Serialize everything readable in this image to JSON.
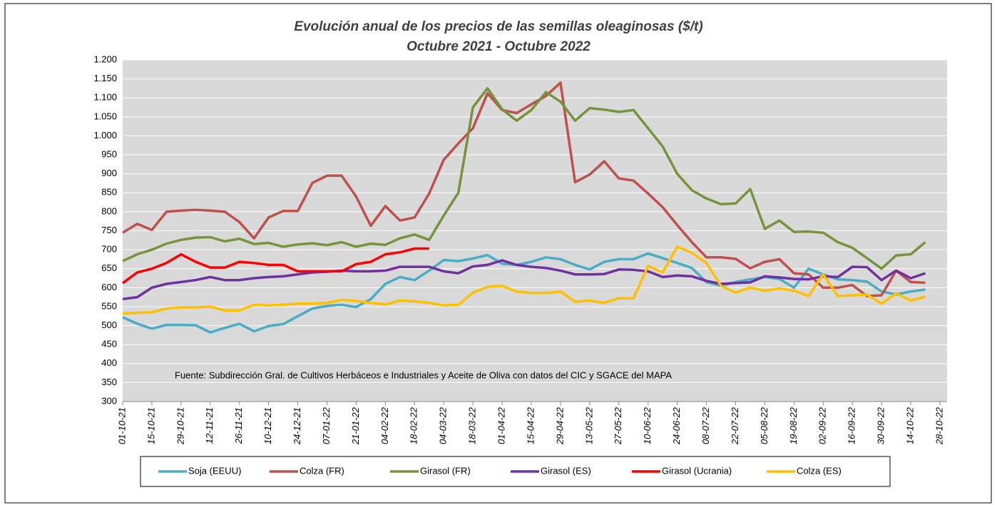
{
  "chart_data": {
    "type": "line",
    "title": "Evolución anual de los precios de las semillas oleaginosas ($/t)",
    "subtitle": "Octubre 2021 - Octubre 2022",
    "annotation": "Fuente: Subdirección Gral. de Cultivos Herbáceos e Industriales y Aceite de Oliva con datos del CIC y SGACE del MAPA",
    "categories": [
      "01-10-21",
      null,
      "15-10-21",
      null,
      "29-10-21",
      null,
      "12-11-21",
      null,
      "26-11-21",
      null,
      "10-12-21",
      null,
      "24-12-21",
      null,
      "07-01-22",
      null,
      "21-01-22",
      null,
      "04-02-22",
      null,
      "18-02-22",
      null,
      "04-03-22",
      null,
      "18-03-22",
      null,
      "01-04-22",
      null,
      "15-04-22",
      null,
      "29-04-22",
      null,
      "13-05-22",
      null,
      "27-05-22",
      null,
      "10-06-22",
      null,
      "24-06-22",
      null,
      "08-07-22",
      null,
      "22-07-22",
      null,
      "05-08-22",
      null,
      "19-08-22",
      null,
      "02-09-22",
      null,
      "16-09-22",
      null,
      "30-09-22",
      null,
      "14-10-22",
      null,
      "28-10-22"
    ],
    "ylim": [
      300,
      1200
    ],
    "yticks": [
      300,
      350,
      400,
      450,
      500,
      550,
      600,
      650,
      700,
      750,
      800,
      850,
      900,
      950,
      {
        "value": 1000,
        "label": "1.000"
      },
      {
        "value": 1050,
        "label": "1.050"
      },
      {
        "value": 1100,
        "label": "1.100"
      },
      {
        "value": 1150,
        "label": "1.150"
      },
      {
        "value": 1200,
        "label": "1.200"
      }
    ],
    "grid": true,
    "legend": "bottom",
    "series": [
      {
        "name": "Soja (EEUU)",
        "color": "#4bacc6",
        "values": [
          522,
          505,
          492,
          502,
          502,
          501,
          482,
          494,
          505,
          485,
          499,
          504,
          525,
          545,
          552,
          555,
          549,
          570,
          610,
          628,
          620,
          645,
          673,
          670,
          677,
          686,
          663,
          660,
          668,
          680,
          675,
          660,
          648,
          668,
          675,
          675,
          690,
          678,
          665,
          652,
          615,
          605,
          615,
          622,
          628,
          623,
          600,
          650,
          635,
          622,
          620,
          616,
          590,
          582,
          590,
          595,
          null
        ]
      },
      {
        "name": "Colza (FR)",
        "color": "#c0504d",
        "values": [
          745,
          768,
          752,
          800,
          803,
          805,
          803,
          800,
          773,
          730,
          785,
          802,
          802,
          876,
          895,
          895,
          840,
          763,
          815,
          777,
          785,
          848,
          937,
          980,
          1020,
          1112,
          1068,
          1060,
          1083,
          1105,
          1140,
          878,
          898,
          933,
          888,
          882,
          848,
          812,
          765,
          720,
          680,
          680,
          676,
          651,
          668,
          675,
          638,
          635,
          600,
          600,
          607,
          578,
          580,
          645,
          615,
          613,
          null
        ]
      },
      {
        "name": "Girasol (FR)",
        "color": "#77933c",
        "values": [
          670,
          688,
          700,
          716,
          726,
          732,
          733,
          722,
          729,
          715,
          718,
          708,
          714,
          717,
          712,
          720,
          708,
          716,
          713,
          730,
          740,
          726,
          790,
          850,
          1075,
          1125,
          1070,
          1040,
          1068,
          1115,
          1090,
          1040,
          1073,
          1069,
          1063,
          1068,
          1020,
          972,
          900,
          857,
          835,
          820,
          822,
          860,
          755,
          777,
          747,
          748,
          745,
          720,
          705,
          678,
          650,
          685,
          688,
          720,
          null
        ]
      },
      {
        "name": "Girasol (ES)",
        "color": "#7030a0",
        "values": [
          570,
          575,
          600,
          610,
          615,
          620,
          628,
          620,
          620,
          625,
          628,
          630,
          635,
          640,
          642,
          645,
          643,
          643,
          645,
          655,
          655,
          655,
          643,
          638,
          656,
          660,
          672,
          660,
          655,
          652,
          645,
          635,
          635,
          636,
          648,
          647,
          643,
          628,
          632,
          630,
          618,
          610,
          612,
          614,
          630,
          627,
          623,
          622,
          630,
          628,
          655,
          654,
          620,
          645,
          625,
          638,
          null
        ]
      },
      {
        "name": "Girasol (Ucrania)",
        "color": "#ff0000",
        "values": [
          612,
          640,
          650,
          665,
          688,
          668,
          653,
          653,
          668,
          665,
          660,
          660,
          643,
          643,
          643,
          643,
          662,
          668,
          688,
          693,
          703,
          703,
          null,
          null,
          null,
          null,
          null,
          null,
          null,
          null,
          null,
          null,
          null,
          null,
          null,
          null,
          null,
          null,
          null,
          null,
          null,
          null,
          null,
          null,
          null,
          null,
          null,
          null,
          null,
          null,
          null,
          null,
          null,
          null,
          null,
          null,
          null
        ]
      },
      {
        "name": "Colza (ES)",
        "color": "#ffc000",
        "values": [
          532,
          534,
          535,
          545,
          548,
          548,
          550,
          540,
          540,
          555,
          553,
          555,
          558,
          558,
          560,
          568,
          565,
          560,
          556,
          566,
          564,
          560,
          553,
          555,
          587,
          602,
          605,
          590,
          586,
          586,
          590,
          563,
          566,
          560,
          572,
          572,
          657,
          640,
          708,
          692,
          665,
          605,
          587,
          600,
          592,
          598,
          592,
          578,
          635,
          578,
          580,
          582,
          558,
          585,
          566,
          576,
          null
        ]
      }
    ]
  }
}
